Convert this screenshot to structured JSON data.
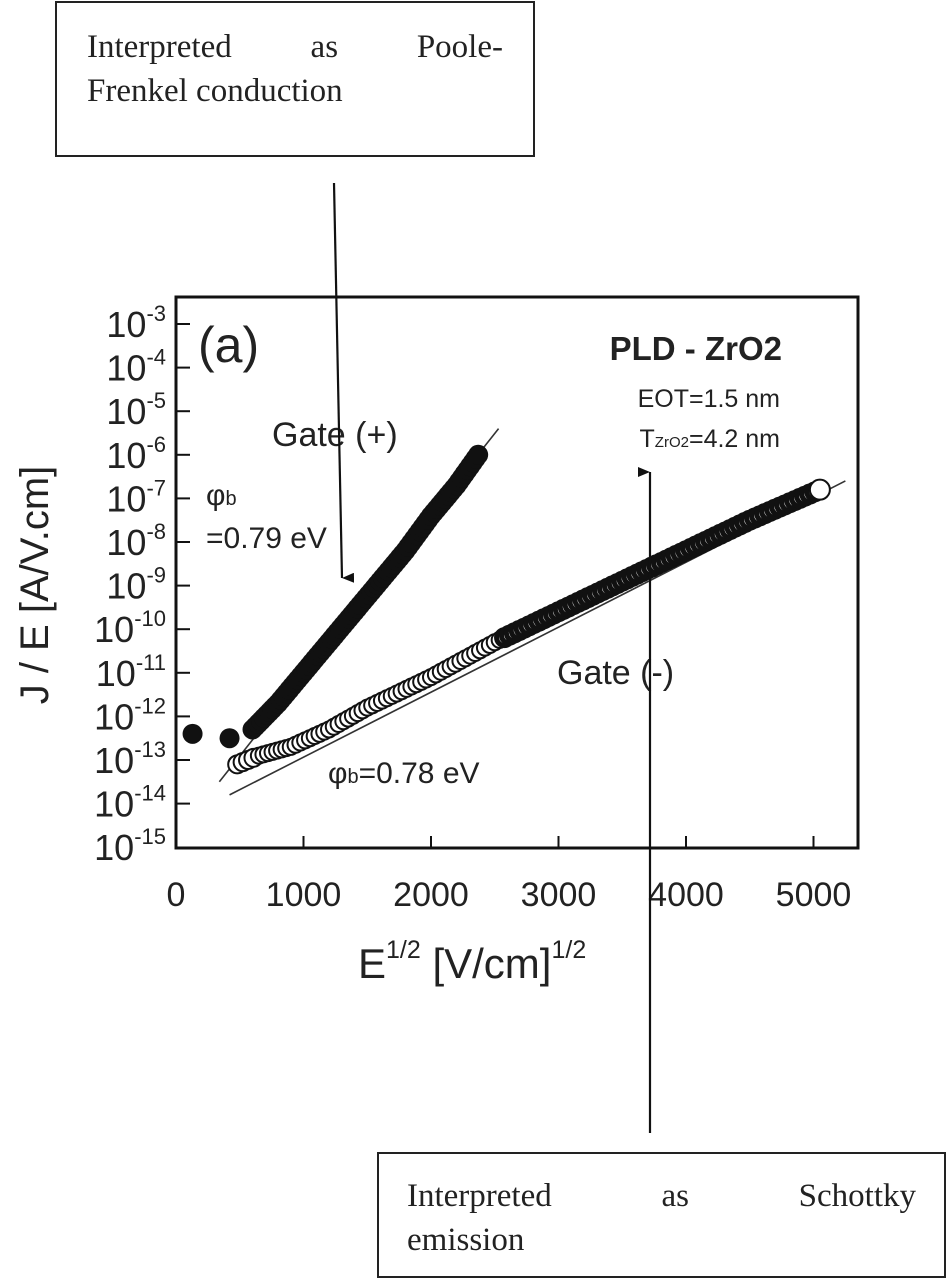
{
  "callouts": {
    "top": {
      "line1": "Interpreted as Poole-",
      "line2": "Frenkel conduction"
    },
    "bottom": {
      "line1": "Interpreted as Schottky",
      "line2": "emission"
    }
  },
  "panel_label": "(a)",
  "sample": {
    "title": "PLD - ZrO2",
    "eot": "EOT=1.5 nm",
    "t_prefix": "T",
    "t_sub": "ZrO2",
    "t_value": "=4.2 nm"
  },
  "annotations": {
    "gate_pos": "Gate (+)",
    "gate_neg": "Gate (-)",
    "phi_pos_symbol": "φ",
    "phi_pos_sub": "b",
    "phi_pos_value": "=0.79 eV",
    "phi_neg_symbol": "φ",
    "phi_neg_sub": "b",
    "phi_neg_value": "=0.78 eV"
  },
  "axes": {
    "ylabel": "J / E [A/V.cm]",
    "xlabel_base": "E",
    "xlabel_sup": "1/2",
    "xlabel_unit": " [V/cm]",
    "xlabel_unit_sup": "1/2"
  },
  "chart_data": {
    "type": "scatter",
    "title": "PLD - ZrO2",
    "subtitle": "EOT=1.5 nm, T_ZrO2=4.2 nm",
    "xlabel": "E^1/2 [V/cm]^1/2",
    "ylabel": "J / E [A/V.cm]",
    "xscale": "linear",
    "yscale": "log",
    "xlim": [
      0,
      5350
    ],
    "ylim": [
      1e-15,
      0.001
    ],
    "xticks": [
      0,
      1000,
      2000,
      3000,
      4000,
      5000
    ],
    "xtick_labels": [
      "0",
      "1000",
      "2000",
      "3000",
      "4000",
      "5000"
    ],
    "yticks_exp": [
      -3,
      -4,
      -5,
      -6,
      -7,
      -8,
      -9,
      -10,
      -11,
      -12,
      -13,
      -14,
      -15
    ],
    "ytick_labels": [
      "10-3",
      "10-4",
      "10-5",
      "10-6",
      "10-7",
      "10-8",
      "10-9",
      "10-10",
      "10-11",
      "10-12",
      "10-13",
      "10-14",
      "10-15"
    ],
    "grid": false,
    "legend": null,
    "series": [
      {
        "name": "Gate (+)",
        "marker": "filled-circle",
        "fit_label": "φb=0.79 eV",
        "x": [
          130,
          420,
          600,
          800,
          1000,
          1200,
          1400,
          1600,
          1800,
          2000,
          2200,
          2370
        ],
        "log10_y": [
          -12.4,
          -12.5,
          -12.3,
          -11.7,
          -11.0,
          -10.3,
          -9.6,
          -8.9,
          -8.2,
          -7.4,
          -6.7,
          -6.0
        ]
      },
      {
        "name": "Gate (-)",
        "marker": "open-circle",
        "fit_label": "φb=0.78 eV",
        "x": [
          480,
          650,
          900,
          1200,
          1500,
          2000,
          2500,
          3000,
          3500,
          4000,
          4500,
          5050
        ],
        "log10_y": [
          -13.1,
          -12.9,
          -12.7,
          -12.3,
          -11.8,
          -11.1,
          -10.3,
          -9.6,
          -8.9,
          -8.2,
          -7.5,
          -6.8
        ]
      }
    ],
    "fit_lines": [
      {
        "series": "Gate (+)",
        "from": [
          340,
          -13.5
        ],
        "to": [
          2530,
          -5.4
        ]
      },
      {
        "series": "Gate (-)",
        "from": [
          420,
          -13.8
        ],
        "to": [
          5250,
          -6.6
        ]
      }
    ],
    "annotations": [
      "(a)",
      "Gate (+)",
      "Gate (-)",
      "φb =0.79 eV",
      "φb=0.78 eV",
      "Interpreted as Poole-Frenkel conduction",
      "Interpreted as Schottky emission"
    ]
  }
}
